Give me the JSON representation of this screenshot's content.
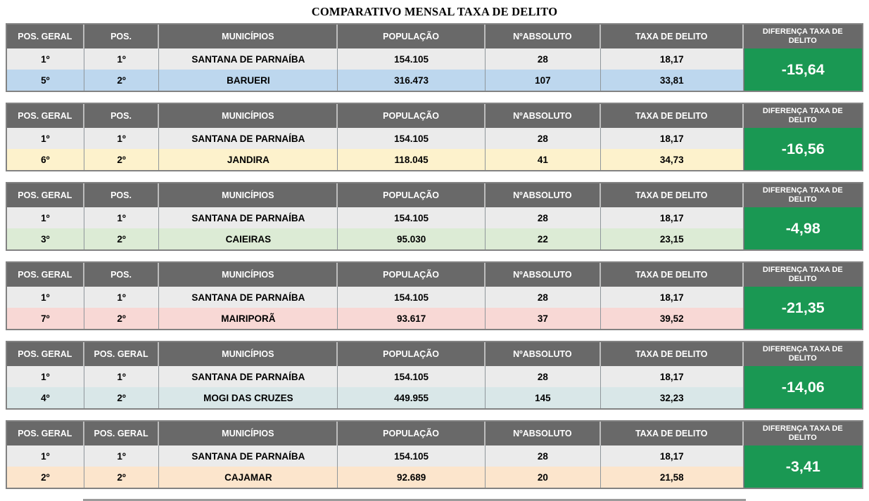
{
  "title": "COMPARATIVO MENSAL TAXA DE DELITO",
  "colors": {
    "header_bg": "#696969",
    "row1_bg": "#ebebeb",
    "diff_bg": "#1a9853",
    "border": "#828282"
  },
  "tables": [
    {
      "name": "BARUERI",
      "headers": [
        "POS. GERAL",
        "POS.",
        "MUNICÍPIOS",
        "POPULAÇÃO",
        "NºABSOLUTO",
        "TAXA DE DELITO",
        "DIFERENÇA TAXA DE DELITO"
      ],
      "rows": [
        {
          "pos_geral": "1º",
          "pos": "1º",
          "municipio": "SANTANA DE PARNAÍBA",
          "populacao": "154.105",
          "absoluto": "28",
          "taxa": "18,17"
        },
        {
          "pos_geral": "5º",
          "pos": "2º",
          "municipio": "BARUERI",
          "populacao": "316.473",
          "absoluto": "107",
          "taxa": "33,81"
        }
      ],
      "diferenca": "-15,64",
      "row2_color": "#bdd7ee"
    },
    {
      "name": "JANDIRA",
      "headers": [
        "POS. GERAL",
        "POS.",
        "MUNICÍPIOS",
        "POPULAÇÃO",
        "NºABSOLUTO",
        "TAXA DE DELITO",
        "DIFERENÇA TAXA DE DELITO"
      ],
      "rows": [
        {
          "pos_geral": "1º",
          "pos": "1º",
          "municipio": "SANTANA DE PARNAÍBA",
          "populacao": "154.105",
          "absoluto": "28",
          "taxa": "18,17"
        },
        {
          "pos_geral": "6º",
          "pos": "2º",
          "municipio": "JANDIRA",
          "populacao": "118.045",
          "absoluto": "41",
          "taxa": "34,73"
        }
      ],
      "diferenca": "-16,56",
      "row2_color": "#fdf2cc"
    },
    {
      "name": "CAIEIRAS",
      "headers": [
        "POS. GERAL",
        "POS.",
        "MUNICÍPIOS",
        "POPULAÇÃO",
        "NºABSOLUTO",
        "TAXA DE DELITO",
        "DIFERENÇA TAXA DE DELITO"
      ],
      "rows": [
        {
          "pos_geral": "1º",
          "pos": "1º",
          "municipio": "SANTANA DE PARNAÍBA",
          "populacao": "154.105",
          "absoluto": "28",
          "taxa": "18,17"
        },
        {
          "pos_geral": "3º",
          "pos": "2º",
          "municipio": "CAIEIRAS",
          "populacao": "95.030",
          "absoluto": "22",
          "taxa": "23,15"
        }
      ],
      "diferenca": "-4,98",
      "row2_color": "#dcebd5"
    },
    {
      "name": "MAIRIPORÃ",
      "headers": [
        "POS. GERAL",
        "POS.",
        "MUNICÍPIOS",
        "POPULAÇÃO",
        "NºABSOLUTO",
        "TAXA DE DELITO",
        "DIFERENÇA TAXA DE DELITO"
      ],
      "rows": [
        {
          "pos_geral": "1º",
          "pos": "1º",
          "municipio": "SANTANA DE PARNAÍBA",
          "populacao": "154.105",
          "absoluto": "28",
          "taxa": "18,17"
        },
        {
          "pos_geral": "7º",
          "pos": "2º",
          "municipio": "MAIRIPORÃ",
          "populacao": "93.617",
          "absoluto": "37",
          "taxa": "39,52"
        }
      ],
      "diferenca": "-21,35",
      "row2_color": "#f8d8d5"
    },
    {
      "name": "MOGI DAS CRUZES",
      "headers": [
        "POS. GERAL",
        "POS. GERAL",
        "MUNICÍPIOS",
        "POPULAÇÃO",
        "NºABSOLUTO",
        "TAXA DE DELITO",
        "DIFERENÇA TAXA DE DELITO"
      ],
      "rows": [
        {
          "pos_geral": "1º",
          "pos": "1º",
          "municipio": "SANTANA DE PARNAÍBA",
          "populacao": "154.105",
          "absoluto": "28",
          "taxa": "18,17"
        },
        {
          "pos_geral": "4º",
          "pos": "2º",
          "municipio": "MOGI DAS CRUZES",
          "populacao": "449.955",
          "absoluto": "145",
          "taxa": "32,23"
        }
      ],
      "diferenca": "-14,06",
      "row2_color": "#d9e7e8"
    },
    {
      "name": "CAJAMAR",
      "headers": [
        "POS. GERAL",
        "POS. GERAL",
        "MUNICÍPIOS",
        "POPULAÇÃO",
        "NºABSOLUTO",
        "TAXA DE DELITO",
        "DIFERENÇA TAXA DE DELITO"
      ],
      "rows": [
        {
          "pos_geral": "1º",
          "pos": "1º",
          "municipio": "SANTANA DE PARNAÍBA",
          "populacao": "154.105",
          "absoluto": "28",
          "taxa": "18,17"
        },
        {
          "pos_geral": "2º",
          "pos": "2º",
          "municipio": "CAJAMAR",
          "populacao": "92.689",
          "absoluto": "20",
          "taxa": "21,58"
        }
      ],
      "diferenca": "-3,41",
      "row2_color": "#fce5cc"
    }
  ]
}
